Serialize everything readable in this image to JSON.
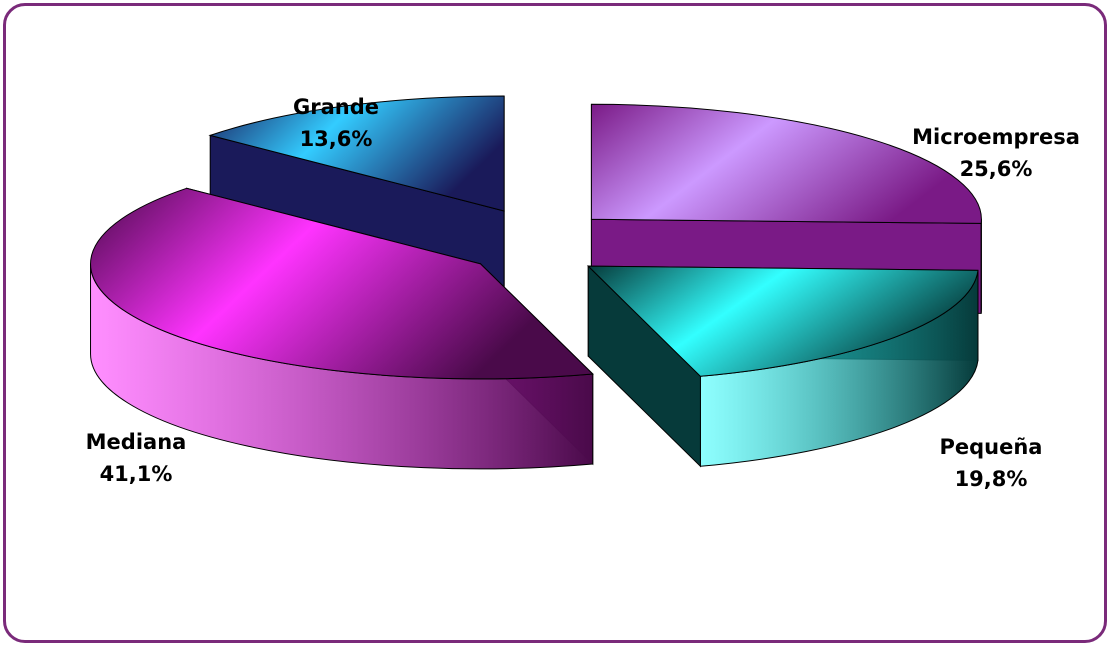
{
  "chart_data": {
    "type": "pie",
    "title": "",
    "slices": [
      {
        "name": "Microempresa",
        "label": "25,6%",
        "value": 25.6,
        "color": "#cc99ff",
        "dark": "#7a1a86"
      },
      {
        "name": "Pequeña",
        "label": "19,8%",
        "value": 19.8,
        "color": "#33ffff",
        "dark": "#063a3a"
      },
      {
        "name": "Mediana",
        "label": "41,1%",
        "value": 41.1,
        "color": "#ff33ff",
        "dark": "#4a0a4a"
      },
      {
        "name": "Grande",
        "label": "13,6%",
        "value": 13.6,
        "color": "#33ccff",
        "dark": "#1a1a5a"
      }
    ],
    "style": "3d-exploded",
    "legend": "none"
  },
  "colors": {
    "frame_border": "#7a2a7a",
    "background": "#ffffff"
  }
}
